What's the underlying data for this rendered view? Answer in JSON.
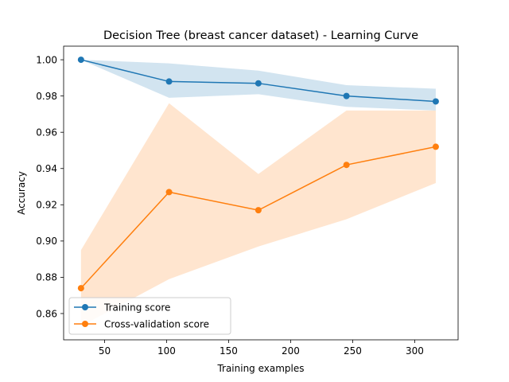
{
  "chart_data": {
    "type": "line",
    "title": "Decision Tree (breast cancer dataset) - Learning Curve",
    "xlabel": "Training examples",
    "ylabel": "Accuracy",
    "xlim": [
      17,
      335
    ],
    "ylim": [
      0.8455,
      1.0075
    ],
    "xticks": [
      50,
      100,
      150,
      200,
      250,
      300
    ],
    "yticks": [
      0.86,
      0.88,
      0.9,
      0.92,
      0.94,
      0.96,
      0.98,
      1.0
    ],
    "xtick_labels": [
      "50",
      "100",
      "150",
      "200",
      "250",
      "300"
    ],
    "ytick_labels": [
      "0.86",
      "0.88",
      "0.90",
      "0.92",
      "0.94",
      "0.96",
      "0.98",
      "1.00"
    ],
    "x": [
      31,
      102,
      174,
      245,
      317
    ],
    "series": [
      {
        "name": "Training score",
        "color": "#1f77b4",
        "values": [
          1.0,
          0.988,
          0.987,
          0.98,
          0.977
        ],
        "band_upper": [
          1.0,
          0.998,
          0.994,
          0.986,
          0.984
        ],
        "band_lower": [
          1.0,
          0.979,
          0.981,
          0.974,
          0.972
        ]
      },
      {
        "name": "Cross-validation score",
        "color": "#ff7f0e",
        "values": [
          0.874,
          0.927,
          0.917,
          0.942,
          0.952
        ],
        "band_upper": [
          0.895,
          0.976,
          0.937,
          0.972,
          0.972
        ],
        "band_lower": [
          0.853,
          0.879,
          0.897,
          0.912,
          0.932
        ]
      }
    ],
    "grid": false,
    "legend_position": "lower-left"
  }
}
